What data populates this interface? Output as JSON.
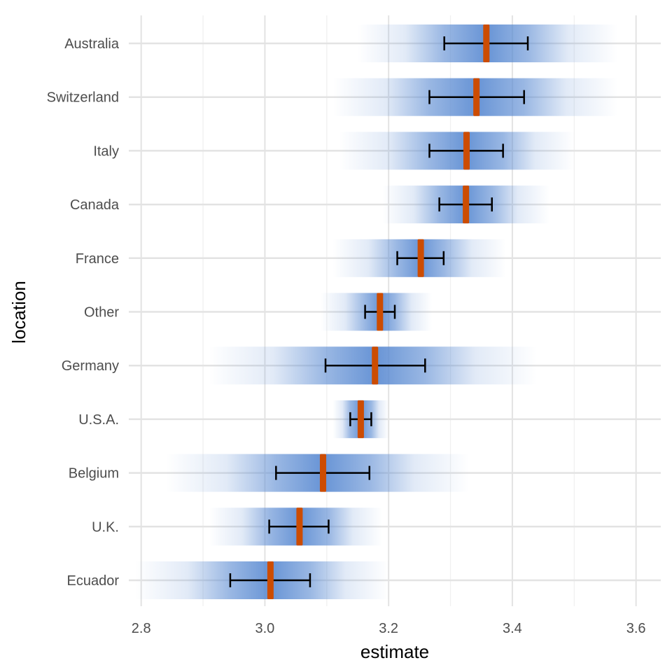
{
  "chart_data": {
    "type": "interval",
    "xlabel": "estimate",
    "ylabel": "location",
    "xlim": [
      2.78,
      3.64
    ],
    "x_ticks": [
      2.8,
      3.0,
      3.2,
      3.4,
      3.6
    ],
    "x_tick_labels": [
      "2.8",
      "3.0",
      "3.2",
      "3.4",
      "3.6"
    ],
    "grid": true,
    "categories": [
      "Australia",
      "Switzerland",
      "Italy",
      "Canada",
      "France",
      "Other",
      "Germany",
      "U.S.A.",
      "Belgium",
      "U.K.",
      "Ecuador"
    ],
    "estimate": [
      3.358,
      3.342,
      3.326,
      3.325,
      3.252,
      3.186,
      3.178,
      3.155,
      3.094,
      3.056,
      3.009
    ],
    "interval_low": [
      3.29,
      3.266,
      3.266,
      3.282,
      3.214,
      3.162,
      3.098,
      3.138,
      3.018,
      3.007,
      2.944
    ],
    "interval_high": [
      3.425,
      3.419,
      3.385,
      3.367,
      3.289,
      3.21,
      3.259,
      3.172,
      3.169,
      3.103,
      3.073
    ],
    "gradient_low": [
      3.15,
      3.11,
      3.12,
      3.19,
      3.11,
      3.09,
      2.91,
      3.11,
      2.84,
      2.91,
      2.79
    ],
    "gradient_high": [
      3.57,
      3.57,
      3.5,
      3.46,
      3.39,
      3.27,
      3.44,
      3.2,
      3.33,
      3.19,
      3.2
    ],
    "colors": {
      "estimate_mark": "#cc4c02",
      "interval_band": "#5b8bd2",
      "error_bar": "#000000",
      "grid_major": "#e3e3e3",
      "grid_minor": "#f0f0f0"
    }
  }
}
